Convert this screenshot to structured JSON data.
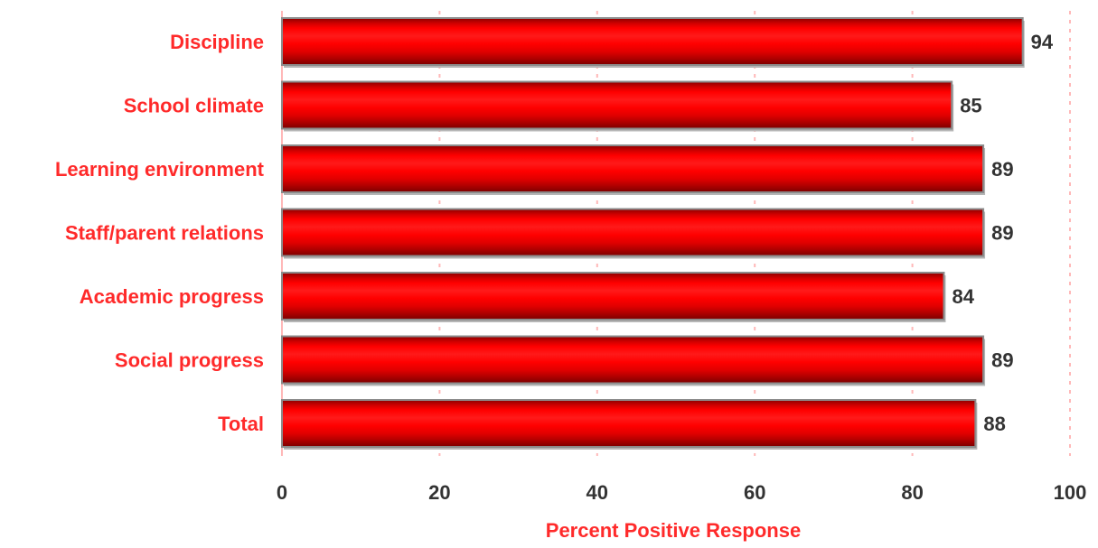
{
  "chart_data": {
    "type": "bar",
    "orientation": "horizontal",
    "categories": [
      "Discipline",
      "School climate",
      "Learning environment",
      "Staff/parent relations",
      "Academic progress",
      "Social progress",
      "Total"
    ],
    "values": [
      94,
      85,
      89,
      89,
      84,
      89,
      88
    ],
    "value_labels": [
      "94",
      "85",
      "89",
      "89",
      "84",
      "89",
      "88"
    ],
    "xlabel": "Percent Positive Response",
    "ylabel": "",
    "xlim": [
      0,
      100
    ],
    "xticks": [
      "0",
      "20",
      "40",
      "60",
      "80",
      "100"
    ],
    "grid": true,
    "colors": {
      "bar_fill": "#ff0000",
      "bar_dark": "#a80000",
      "bar_edge": "#8c8c8c",
      "label_red": "#ff2a2a",
      "tick_text": "#333333",
      "grid": "#ffb8b8"
    }
  }
}
